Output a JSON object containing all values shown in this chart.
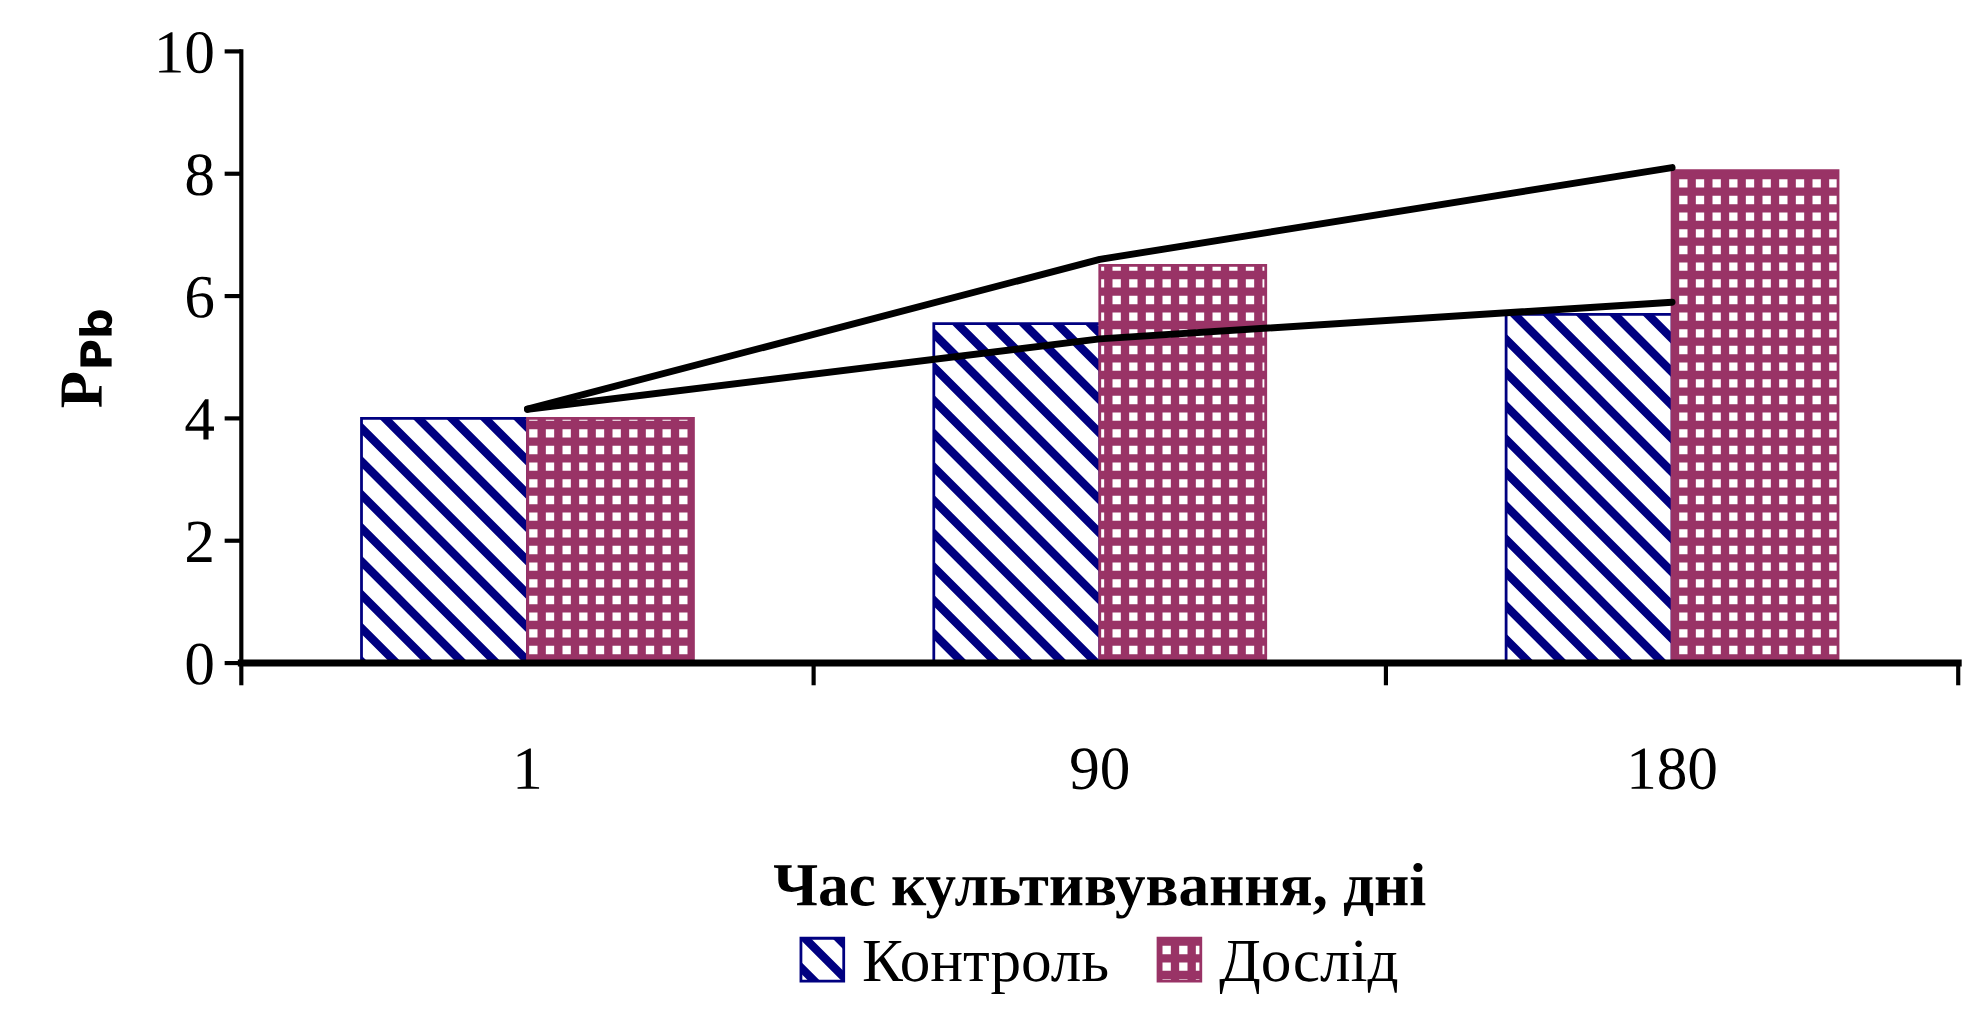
{
  "chart_data": {
    "type": "bar",
    "xlabel": "Час культивування, дні",
    "ylabel": "P$_{Pb}$",
    "categories": [
      "1",
      "90",
      "180"
    ],
    "series": [
      {
        "name": "Контроль",
        "color": "#000080",
        "values": [
          4.0,
          5.55,
          5.7
        ]
      },
      {
        "name": "Дослід",
        "color": "#993366",
        "values": [
          4.0,
          6.5,
          8.05
        ]
      },
      {
        "type": "line",
        "color": "#000000",
        "x": [
          "1",
          "90",
          "180"
        ],
        "values": [
          4.15,
          6.6,
          8.1
        ]
      },
      {
        "type": "line",
        "color": "#000000",
        "x": [
          "1",
          "90",
          "180"
        ],
        "values": [
          4.15,
          5.3,
          5.9
        ]
      }
    ],
    "ylim": [
      0,
      10
    ],
    "yticks": [
      0,
      2,
      4,
      6,
      8,
      10
    ],
    "grid": false,
    "legend": "bottom"
  }
}
